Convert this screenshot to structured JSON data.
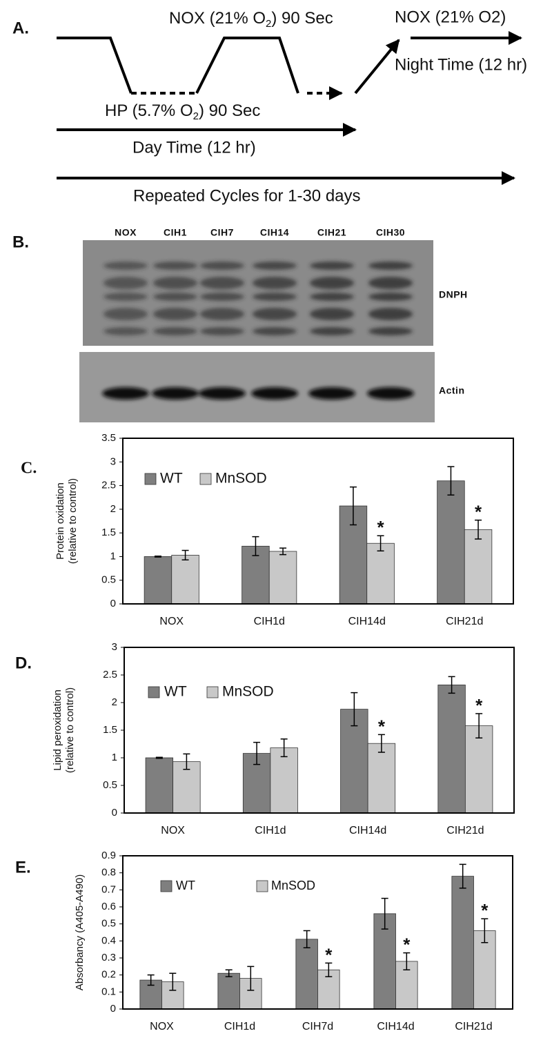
{
  "panel_a": {
    "label": "A.",
    "nox_pulse": {
      "pre": "NOX (21% O",
      "sub": "2",
      "post": ") 90 Sec"
    },
    "hp_pulse": {
      "pre": "HP (5.7% O",
      "sub": "2",
      "post": ") 90 Sec"
    },
    "night_state": "NOX (21% O2)",
    "night_time": "Night Time (12 hr)",
    "day_time": "Day Time (12 hr)",
    "repeat": "Repeated Cycles for 1-30 days"
  },
  "panel_b": {
    "label": "B.",
    "lanes": [
      "NOX",
      "CIH1",
      "CIH7",
      "CIH14",
      "CIH21",
      "CIH30"
    ],
    "blot_top": "DNPH",
    "blot_bottom": "Actin"
  },
  "chart_data": [
    {
      "type": "bar",
      "panel_label": "C.",
      "ylabel": [
        "Protein oxidation",
        "(relative to control)"
      ],
      "categories": [
        "NOX",
        "CIH1d",
        "CIH14d",
        "CIH21d"
      ],
      "series": [
        {
          "name": "WT",
          "color": "#7f7f7f",
          "values": [
            1.0,
            1.22,
            2.07,
            2.6
          ],
          "errors": [
            0.01,
            0.2,
            0.4,
            0.3
          ],
          "markers": [
            null,
            null,
            null,
            null
          ]
        },
        {
          "name": "MnSOD",
          "color": "#c8c8c8",
          "values": [
            1.03,
            1.11,
            1.28,
            1.57
          ],
          "errors": [
            0.1,
            0.07,
            0.16,
            0.2
          ],
          "markers": [
            null,
            null,
            "*",
            "*"
          ]
        }
      ],
      "ylim": [
        0,
        3.5
      ],
      "yticks": [
        0,
        0.5,
        1,
        1.5,
        2,
        2.5,
        3,
        3.5
      ],
      "legend": "top-left"
    },
    {
      "type": "bar",
      "panel_label": "D.",
      "ylabel": [
        "Lipid peroxidation",
        "(relative to control)"
      ],
      "categories": [
        "NOX",
        "CIH1d",
        "CIH14d",
        "CIH21d"
      ],
      "series": [
        {
          "name": "WT",
          "color": "#7f7f7f",
          "values": [
            1.0,
            1.08,
            1.88,
            2.32
          ],
          "errors": [
            0.01,
            0.2,
            0.3,
            0.15
          ],
          "markers": [
            null,
            null,
            null,
            null
          ]
        },
        {
          "name": "MnSOD",
          "color": "#c8c8c8",
          "values": [
            0.93,
            1.18,
            1.26,
            1.58
          ],
          "errors": [
            0.14,
            0.16,
            0.16,
            0.22
          ],
          "markers": [
            null,
            null,
            "*",
            "*"
          ]
        }
      ],
      "ylim": [
        0,
        3
      ],
      "yticks": [
        0,
        0.5,
        1,
        1.5,
        2,
        2.5,
        3
      ],
      "legend": "top-left"
    },
    {
      "type": "bar",
      "panel_label": "E.",
      "ylabel": [
        "Absorbancy (A405-A490)"
      ],
      "categories": [
        "NOX",
        "CIH1d",
        "CIH7d",
        "CIH14d",
        "CIH21d"
      ],
      "series": [
        {
          "name": "WT",
          "color": "#7f7f7f",
          "values": [
            0.17,
            0.21,
            0.41,
            0.56,
            0.78
          ],
          "errors": [
            0.03,
            0.02,
            0.05,
            0.09,
            0.07
          ],
          "markers": [
            null,
            null,
            null,
            null,
            null
          ]
        },
        {
          "name": "MnSOD",
          "color": "#c8c8c8",
          "values": [
            0.16,
            0.18,
            0.23,
            0.28,
            0.46
          ],
          "errors": [
            0.05,
            0.07,
            0.04,
            0.05,
            0.07
          ],
          "markers": [
            null,
            null,
            "*",
            "*",
            "*"
          ]
        }
      ],
      "ylim": [
        0,
        0.9
      ],
      "yticks": [
        0,
        0.1,
        0.2,
        0.3,
        0.4,
        0.5,
        0.6,
        0.7,
        0.8,
        0.9
      ],
      "legend": "top-left"
    }
  ]
}
